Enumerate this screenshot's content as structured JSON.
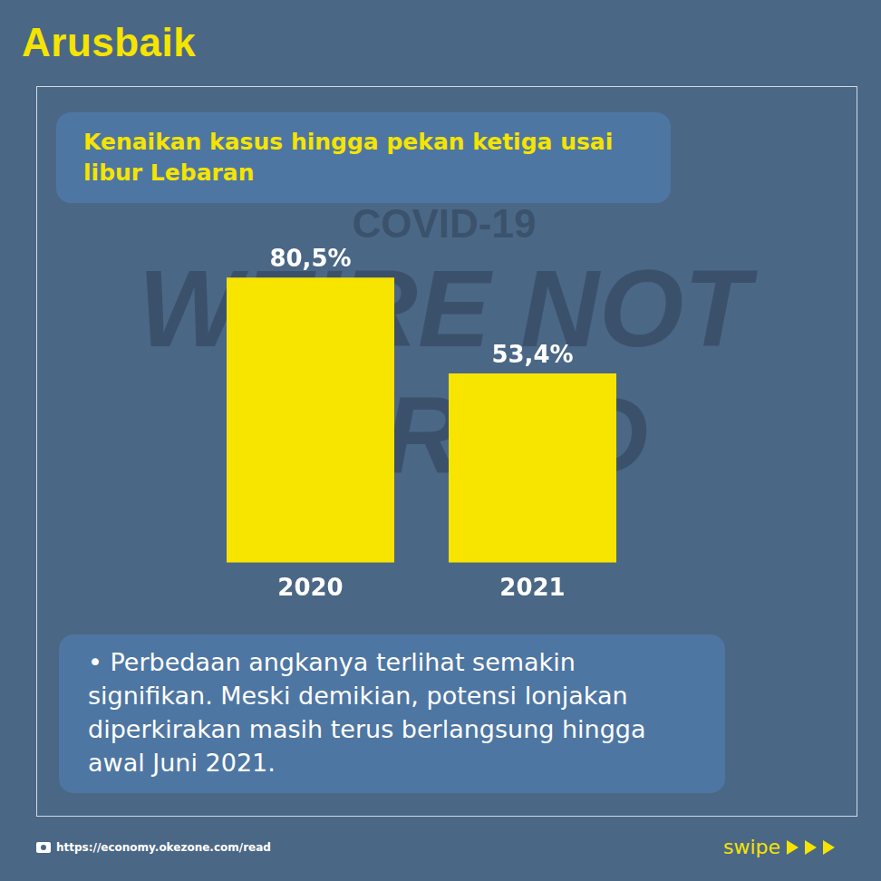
{
  "logo": "Arusbaik",
  "background_text": [
    "COVID-19",
    "WE'RE NOT AFRAID"
  ],
  "chart_data": {
    "type": "bar",
    "title": "Kenaikan kasus hingga pekan ketiga usai libur Lebaran",
    "categories": [
      "2020",
      "2021"
    ],
    "values": [
      80.5,
      53.4
    ],
    "value_labels": [
      "80,5%",
      "53,4%"
    ],
    "color": "#f7e500",
    "ylim": [
      0,
      100
    ],
    "grid": false,
    "data_labels": true,
    "tick_labels": "x"
  },
  "note": "• Perbedaan angkanya terlihat semakin signifikan. Meski demikian, potensi lonjakan diperkirakan masih terus berlangsung hingga awal Juni 2021.",
  "source": "https://economy.okezone.com/read",
  "swipe": "swipe"
}
